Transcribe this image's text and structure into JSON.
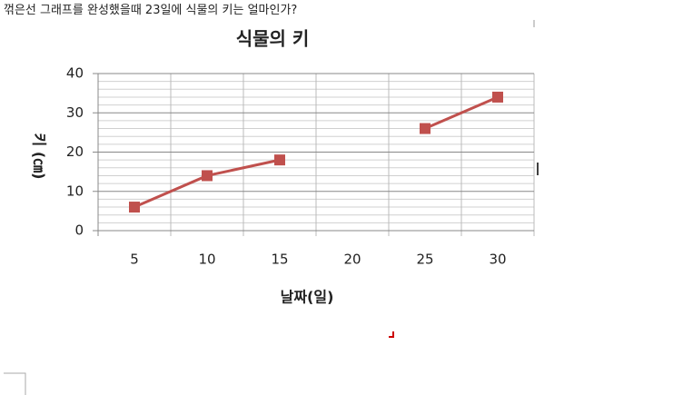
{
  "question": "꺾은선 그래프를 완성했을때 23일에 식물의 키는 얼마인가?",
  "chart_data": {
    "type": "line",
    "title": "식물의 키",
    "x_label": "날짜(일)",
    "y_label": "키 (㎝)",
    "categories": [
      "5",
      "10",
      "15",
      "20",
      "25",
      "30"
    ],
    "series": [
      {
        "name": "키",
        "color": "#c0504d",
        "values": [
          6,
          14,
          18,
          null,
          26,
          34
        ]
      }
    ],
    "ylim": [
      0,
      40
    ],
    "yticks": [
      0,
      10,
      20,
      30,
      40
    ],
    "minor_yticks": [
      2,
      4,
      6,
      8,
      12,
      14,
      16,
      18,
      22,
      24,
      26,
      28,
      32,
      34,
      36,
      38
    ],
    "grid": true,
    "legend": false
  }
}
